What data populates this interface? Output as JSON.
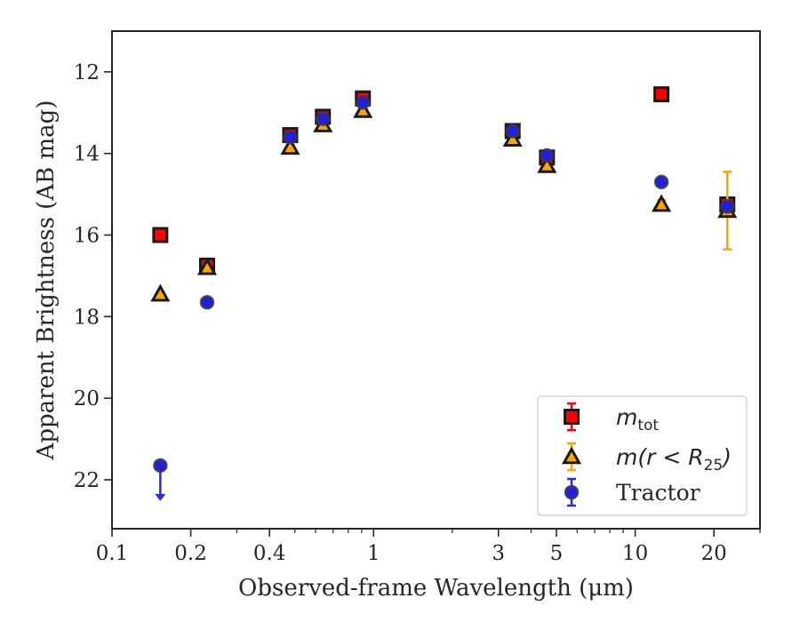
{
  "chart_data": {
    "type": "scatter",
    "xlabel": "Observed-frame Wavelength (μm)",
    "ylabel": "Apparent Brightness (AB mag)",
    "xscale": "log",
    "xlim": [
      0.1,
      30
    ],
    "ylim": [
      23.2,
      11.0
    ],
    "y_inverted": true,
    "grid": false,
    "legend_position": "lower right",
    "x_ticks": [
      {
        "value": 0.1,
        "label": "0.1"
      },
      {
        "value": 0.2,
        "label": "0.2"
      },
      {
        "value": 0.4,
        "label": "0.4"
      },
      {
        "value": 1,
        "label": "1"
      },
      {
        "value": 3,
        "label": "3"
      },
      {
        "value": 5,
        "label": "5"
      },
      {
        "value": 10,
        "label": "10"
      },
      {
        "value": 20,
        "label": "20"
      }
    ],
    "x_minor_ticks": [
      0.3,
      0.5,
      0.6,
      0.7,
      0.8,
      0.9,
      2,
      4,
      6,
      7,
      8,
      9,
      30
    ],
    "y_ticks": [
      {
        "value": 12,
        "label": "12"
      },
      {
        "value": 14,
        "label": "14"
      },
      {
        "value": 16,
        "label": "16"
      },
      {
        "value": 18,
        "label": "18"
      },
      {
        "value": 20,
        "label": "20"
      },
      {
        "value": 22,
        "label": "22"
      }
    ],
    "series": [
      {
        "legend_main": "m",
        "legend_sub": "tot",
        "marker": "square",
        "face_color": "#ff0000",
        "edge_color": "#1a1a1a",
        "error_color": "#ff0000",
        "points": [
          {
            "x": 0.153,
            "y": 16.0,
            "err": 0.05
          },
          {
            "x": 0.231,
            "y": 16.75,
            "err": 0.1
          },
          {
            "x": 0.48,
            "y": 13.55,
            "err": 0.05
          },
          {
            "x": 0.64,
            "y": 13.1,
            "err": 0.05
          },
          {
            "x": 0.91,
            "y": 12.65,
            "err": 0.05
          },
          {
            "x": 3.4,
            "y": 13.45,
            "err": 0.05
          },
          {
            "x": 4.6,
            "y": 14.1,
            "err": 0.05
          },
          {
            "x": 12.6,
            "y": 12.55,
            "err": 0.05
          },
          {
            "x": 22.5,
            "y": 15.25,
            "err": 0.1
          }
        ]
      },
      {
        "legend_main": "m(r < R",
        "legend_sub": "25",
        "legend_tail": ")",
        "marker": "triangle",
        "face_color": "#ffa500",
        "edge_color": "#1a1a1a",
        "error_color": "#ffa500",
        "points": [
          {
            "x": 0.153,
            "y": 17.45,
            "err": 0.05
          },
          {
            "x": 0.231,
            "y": 16.8,
            "err": 0.05
          },
          {
            "x": 0.48,
            "y": 13.85,
            "err": 0.05
          },
          {
            "x": 0.64,
            "y": 13.3,
            "err": 0.05
          },
          {
            "x": 0.91,
            "y": 12.95,
            "err": 0.05
          },
          {
            "x": 3.4,
            "y": 13.65,
            "err": 0.05
          },
          {
            "x": 4.6,
            "y": 14.3,
            "err": 0.05
          },
          {
            "x": 12.6,
            "y": 15.25,
            "err": 0.1
          },
          {
            "x": 22.5,
            "y": 15.4,
            "err": 0.95
          }
        ]
      },
      {
        "legend_main": "Tractor",
        "marker": "circle",
        "face_color": "#1f1fdd",
        "edge_color": "#3a3a4a",
        "error_color": "#2a2ae8",
        "points": [
          {
            "x": 0.153,
            "y": 21.65,
            "err": 0,
            "upper_limit": true
          },
          {
            "x": 0.231,
            "y": 17.65,
            "err": 0.05
          },
          {
            "x": 0.48,
            "y": 13.6,
            "err": 0.05
          },
          {
            "x": 0.64,
            "y": 13.15,
            "err": 0.05
          },
          {
            "x": 0.91,
            "y": 12.75,
            "err": 0.05
          },
          {
            "x": 3.4,
            "y": 13.45,
            "err": 0.05
          },
          {
            "x": 4.6,
            "y": 14.05,
            "err": 0.05
          },
          {
            "x": 12.6,
            "y": 14.7,
            "err": 0.05
          },
          {
            "x": 22.5,
            "y": 15.3,
            "err": 0.05
          }
        ]
      }
    ]
  }
}
